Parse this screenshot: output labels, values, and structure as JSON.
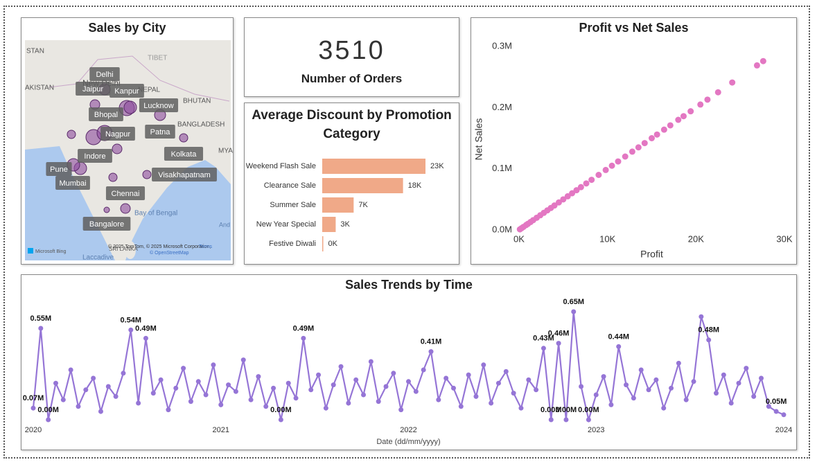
{
  "map": {
    "title": "Sales by City",
    "cities": [
      "Delhi",
      "Jaipur",
      "Kanpur",
      "Lucknow",
      "Bhopal",
      "Nagpur",
      "Patna",
      "Kolkata",
      "Indore",
      "Pune",
      "Visakhapatnam",
      "Mumbai",
      "Chennai",
      "Bangalore"
    ],
    "place_labels": [
      "STAN",
      "TIBET",
      "AKISTAN",
      "New Delhi",
      "NEPAL",
      "BHUTAN",
      "BANGLADESH",
      "MYA",
      "Bay of Bengal",
      "SRI LANKA",
      "Laccadive",
      "And"
    ],
    "brand": "Microsoft Bing",
    "attribution": "© 2025 TomTom, © 2025 Microsoft Corporation,",
    "osm": "© OpenStreetMap",
    "terms": "Terms"
  },
  "kpi": {
    "value": 3510,
    "label": "Number of Orders"
  },
  "chart_data": [
    {
      "type": "bar",
      "orientation": "horizontal",
      "title": "Average Discount by Promotion Category",
      "categories": [
        "Weekend Flash Sale",
        "Clearance Sale",
        "Summer Sale",
        "New Year Special",
        "Festive Diwali"
      ],
      "values": [
        23,
        18,
        7,
        3,
        0
      ],
      "value_labels": [
        "23K",
        "18K",
        "7K",
        "3K",
        "0K"
      ],
      "color": "#f0a988"
    },
    {
      "type": "scatter",
      "title": "Profit vs Net Sales",
      "x_label": "Profit",
      "y_label": "Net Sales",
      "color": "#e377c2",
      "x": [
        100,
        300,
        500,
        800,
        1000,
        1300,
        1600,
        2000,
        2400,
        2800,
        3200,
        3600,
        4000,
        4500,
        5000,
        5500,
        6000,
        6500,
        7000,
        7600,
        8200,
        9000,
        9800,
        10500,
        11200,
        12000,
        12800,
        13500,
        14200,
        15000,
        15600,
        16400,
        17100,
        18000,
        18600,
        19400,
        20500,
        21300,
        22500,
        24100,
        26900,
        27600
      ],
      "values": [
        1000,
        3000,
        5000,
        8000,
        10000,
        13000,
        16000,
        20000,
        24000,
        28000,
        32000,
        36000,
        40000,
        45000,
        50000,
        55000,
        60000,
        65000,
        70000,
        76000,
        82000,
        90000,
        98000,
        105000,
        112000,
        120000,
        128000,
        135000,
        142000,
        150000,
        156000,
        164000,
        171000,
        180000,
        186000,
        194000,
        205000,
        213000,
        225000,
        241000,
        269000,
        276000
      ],
      "xlim": [
        0,
        30000
      ],
      "ylim": [
        0,
        300000
      ],
      "xticks": [
        {
          "value": 0,
          "label": "0K"
        },
        {
          "value": 10000,
          "label": "10K"
        },
        {
          "value": 20000,
          "label": "20K"
        },
        {
          "value": 30000,
          "label": "30K"
        }
      ],
      "yticks": [
        {
          "value": 0,
          "label": "0.0M"
        },
        {
          "value": 100000,
          "label": "0.1M"
        },
        {
          "value": 200000,
          "label": "0.2M"
        },
        {
          "value": 300000,
          "label": "0.3M"
        }
      ]
    },
    {
      "type": "line",
      "title": "Sales Trends by Time",
      "x_label": "Date (dd/mm/yyyy)",
      "color": "#9575d6",
      "x": [
        2020,
        2020.04,
        2020.08,
        2020.12,
        2020.16,
        2020.2,
        2020.24,
        2020.28,
        2020.32,
        2020.36,
        2020.4,
        2020.44,
        2020.48,
        2020.52,
        2020.56,
        2020.6,
        2020.64,
        2020.68,
        2020.72,
        2020.76,
        2020.8,
        2020.84,
        2020.88,
        2020.92,
        2020.96,
        2021,
        2021.04,
        2021.08,
        2021.12,
        2021.16,
        2021.2,
        2021.24,
        2021.28,
        2021.32,
        2021.36,
        2021.4,
        2021.44,
        2021.48,
        2021.52,
        2021.56,
        2021.6,
        2021.64,
        2021.68,
        2021.72,
        2021.76,
        2021.8,
        2021.84,
        2021.88,
        2021.92,
        2021.96,
        2022,
        2022.04,
        2022.08,
        2022.12,
        2022.16,
        2022.2,
        2022.24,
        2022.28,
        2022.32,
        2022.36,
        2022.4,
        2022.44,
        2022.48,
        2022.52,
        2022.56,
        2022.6,
        2022.64,
        2022.68,
        2022.72,
        2022.76,
        2022.8,
        2022.84,
        2022.88,
        2022.92,
        2022.96,
        2023,
        2023.04,
        2023.08,
        2023.12,
        2023.16,
        2023.2,
        2023.24,
        2023.28,
        2023.32,
        2023.36,
        2023.4,
        2023.44,
        2023.48,
        2023.52,
        2023.56,
        2023.6,
        2023.64,
        2023.68,
        2023.72,
        2023.76,
        2023.8,
        2023.84,
        2023.88,
        2023.92,
        2023.96,
        2024
      ],
      "values": [
        0.07,
        0.55,
        0.0,
        0.22,
        0.12,
        0.3,
        0.08,
        0.18,
        0.25,
        0.05,
        0.2,
        0.14,
        0.28,
        0.54,
        0.1,
        0.49,
        0.16,
        0.24,
        0.06,
        0.19,
        0.31,
        0.11,
        0.23,
        0.15,
        0.33,
        0.09,
        0.21,
        0.17,
        0.36,
        0.12,
        0.26,
        0.08,
        0.19,
        0.0,
        0.22,
        0.13,
        0.49,
        0.18,
        0.27,
        0.07,
        0.21,
        0.32,
        0.1,
        0.24,
        0.15,
        0.35,
        0.11,
        0.2,
        0.28,
        0.06,
        0.23,
        0.17,
        0.3,
        0.41,
        0.12,
        0.25,
        0.19,
        0.08,
        0.27,
        0.14,
        0.33,
        0.1,
        0.22,
        0.29,
        0.16,
        0.07,
        0.24,
        0.18,
        0.43,
        0.0,
        0.46,
        0.0,
        0.65,
        0.2,
        0.0,
        0.15,
        0.26,
        0.09,
        0.44,
        0.21,
        0.13,
        0.3,
        0.18,
        0.24,
        0.07,
        0.19,
        0.34,
        0.12,
        0.23,
        0.62,
        0.48,
        0.16,
        0.27,
        0.1,
        0.22,
        0.31,
        0.14,
        0.25,
        0.08,
        0.05,
        0.03
      ],
      "value_labels": [
        "0.07M",
        "0.55M",
        "0.00M",
        null,
        null,
        null,
        null,
        null,
        null,
        null,
        null,
        null,
        null,
        "0.54M",
        null,
        "0.49M",
        null,
        null,
        null,
        null,
        null,
        null,
        null,
        null,
        null,
        null,
        null,
        null,
        null,
        null,
        null,
        null,
        null,
        "0.00M",
        null,
        null,
        "0.49M",
        null,
        null,
        null,
        null,
        null,
        null,
        null,
        null,
        null,
        null,
        null,
        null,
        null,
        null,
        null,
        null,
        "0.41M",
        null,
        null,
        null,
        null,
        null,
        null,
        null,
        null,
        null,
        null,
        null,
        null,
        null,
        null,
        "0.43M",
        "0.00M",
        "0.46M",
        "0.00M",
        "0.65M",
        null,
        "0.00M",
        null,
        null,
        null,
        "0.44M",
        null,
        null,
        null,
        null,
        null,
        null,
        null,
        null,
        null,
        null,
        null,
        "0.48M",
        null,
        null,
        null,
        null,
        null,
        null,
        null,
        null,
        "0.05M",
        null
      ],
      "xlim": [
        2020,
        2024
      ],
      "xticks": [
        2020,
        2021,
        2022,
        2023,
        2024
      ]
    }
  ]
}
